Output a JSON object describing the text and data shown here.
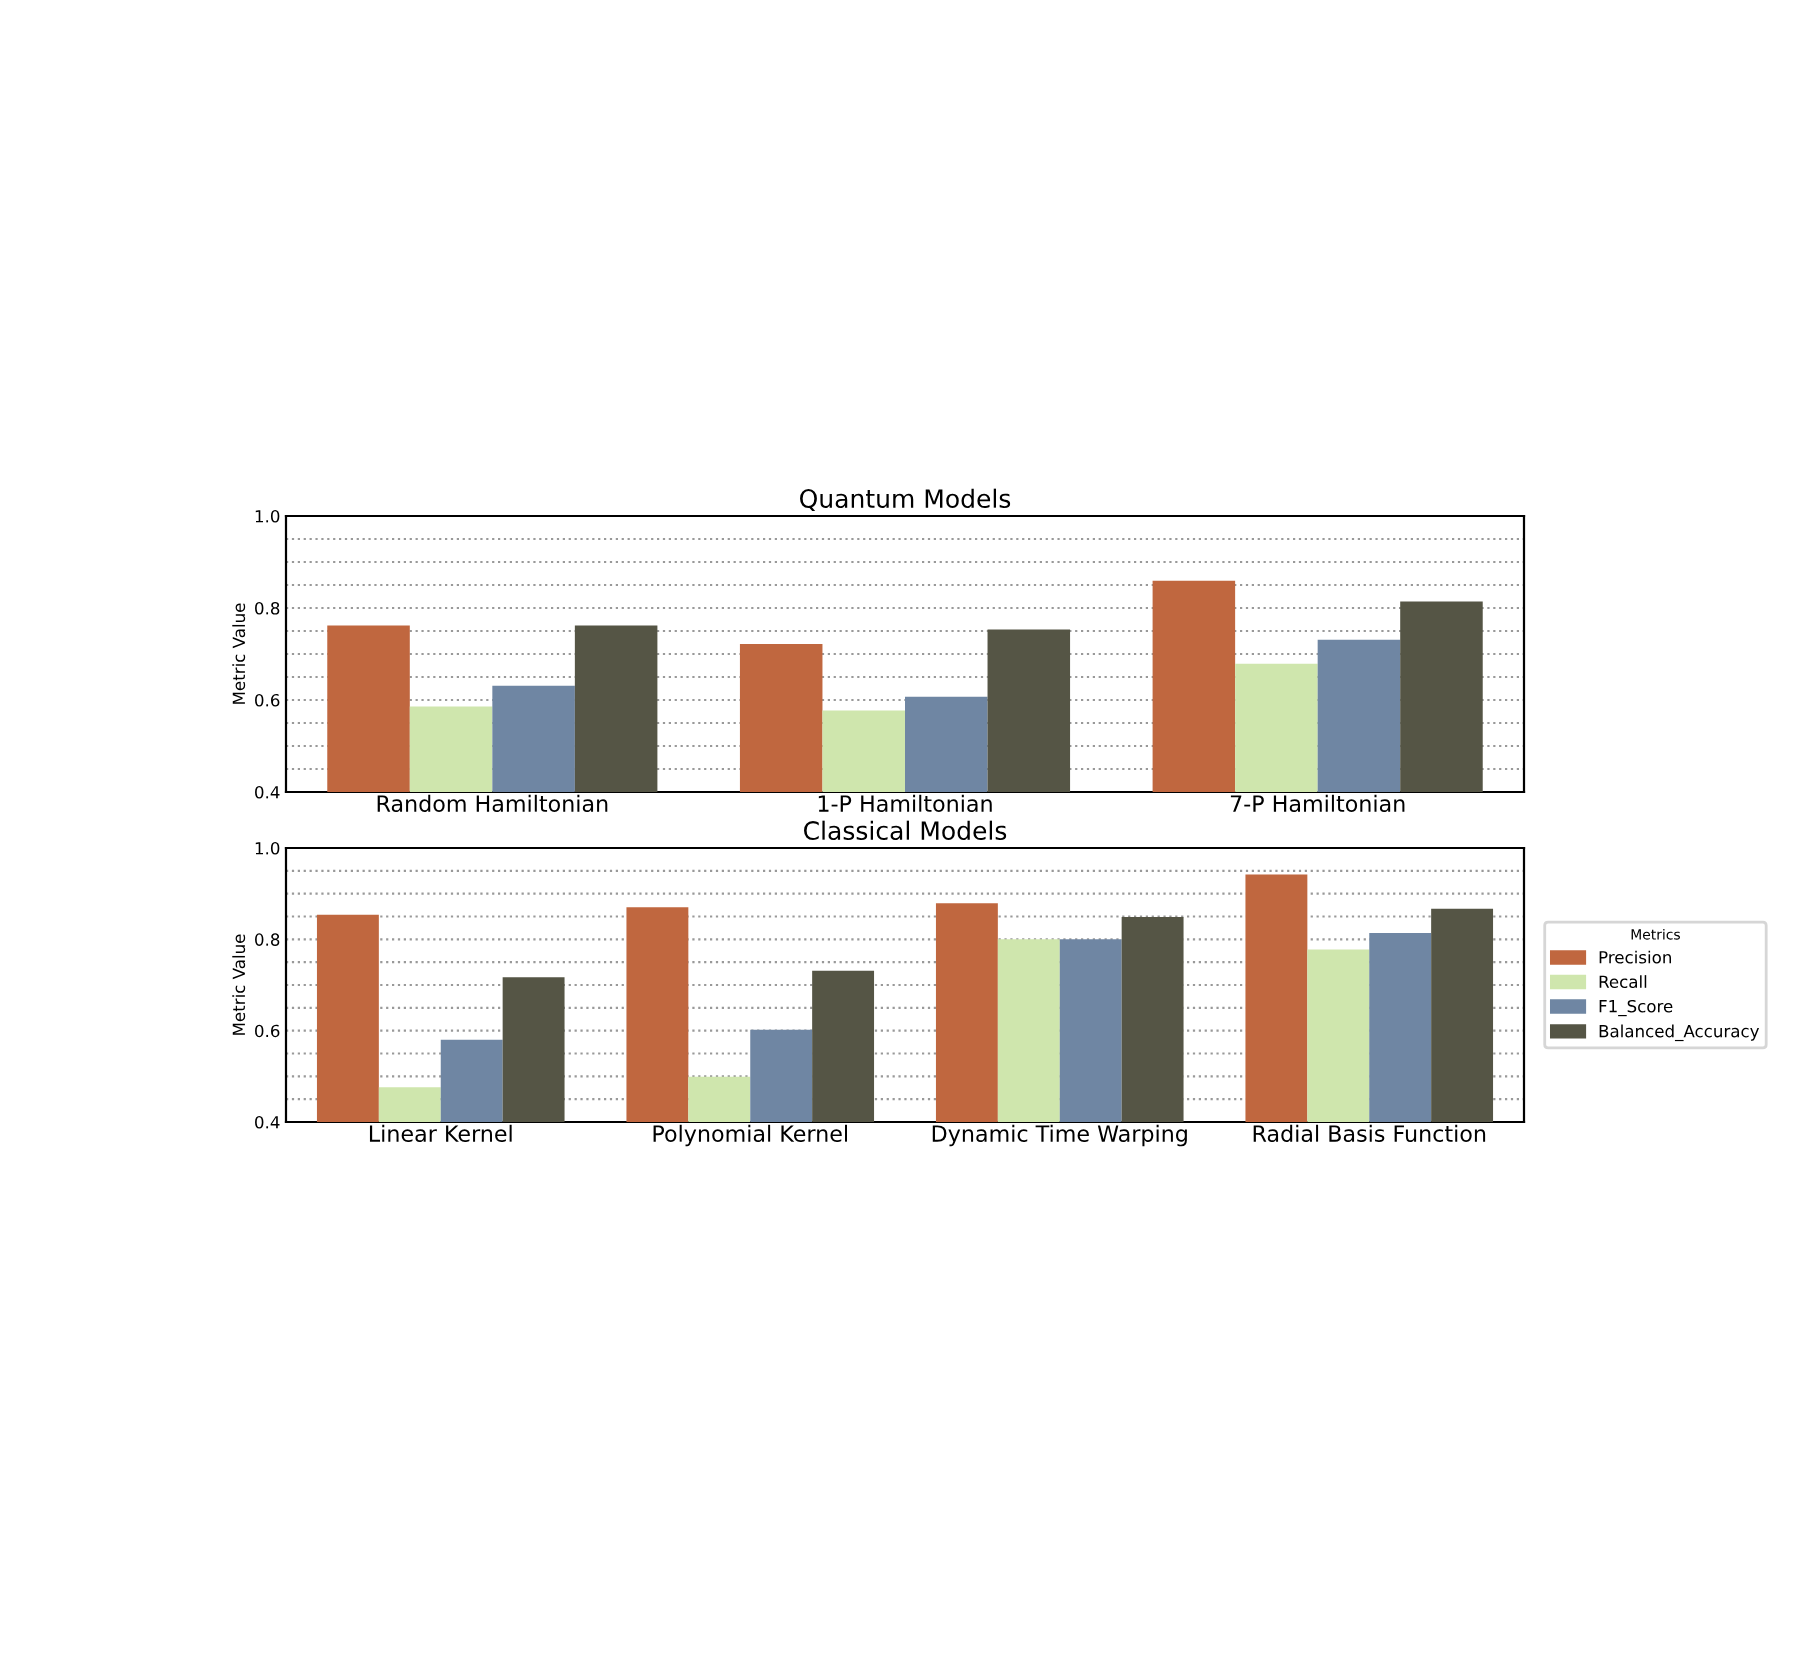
{
  "chart_data": [
    {
      "type": "bar",
      "title": "Quantum Models",
      "ylabel": "Metric Value",
      "categories": [
        "Random Hamiltonian",
        "1-P Hamiltonian",
        "7-P Hamiltonian"
      ],
      "series": [
        {
          "color": "#c0673f",
          "values": [
            0.762,
            0.722,
            0.859
          ]
        },
        {
          "color": "#cfe6ad",
          "values": [
            0.586,
            0.577,
            0.679
          ]
        },
        {
          "color": "#6f86a3",
          "values": [
            0.631,
            0.607,
            0.731
          ]
        },
        {
          "color": "#555545",
          "values": [
            0.762,
            0.753,
            0.814
          ]
        }
      ],
      "ylim": [
        0.4,
        1.0
      ],
      "yticks": [
        0.4,
        {
          "value": 0.45,
          "label": null
        },
        {
          "value": 0.5,
          "label": null
        },
        {
          "value": 0.55,
          "label": null
        },
        0.6,
        {
          "value": 0.65,
          "label": null
        },
        {
          "value": 0.7,
          "label": null
        },
        {
          "value": 0.75,
          "label": null
        },
        0.8,
        {
          "value": 0.85,
          "label": null
        },
        {
          "value": 0.9,
          "label": null
        },
        {
          "value": 0.95,
          "label": null
        },
        {
          "value": 1.0,
          "label": "1.0"
        }
      ],
      "grid": "y",
      "legend": false
    },
    {
      "type": "bar",
      "title": "Classical Models",
      "ylabel": "Metric Value",
      "legend_title": "Metrics",
      "categories": [
        "Linear Kernel",
        "Polynomial Kernel",
        "Dynamic Time Warping",
        "Radial Basis Function"
      ],
      "series": [
        {
          "name": "Precision",
          "color": "#c0673f",
          "values": [
            0.854,
            0.87,
            0.879,
            0.942
          ]
        },
        {
          "name": "Recall",
          "color": "#cfe6ad",
          "values": [
            0.476,
            0.499,
            0.8,
            0.778
          ]
        },
        {
          "name": "F1_Score",
          "color": "#6f86a3",
          "values": [
            0.58,
            0.602,
            0.8,
            0.814
          ]
        },
        {
          "name": "Balanced_Accuracy",
          "color": "#555545",
          "values": [
            0.717,
            0.731,
            0.849,
            0.867
          ]
        }
      ],
      "ylim": [
        0.4,
        1.0
      ],
      "yticks": [
        0.4,
        {
          "value": 0.45,
          "label": null
        },
        {
          "value": 0.5,
          "label": null
        },
        {
          "value": 0.55,
          "label": null
        },
        0.6,
        {
          "value": 0.65,
          "label": null
        },
        {
          "value": 0.7,
          "label": null
        },
        {
          "value": 0.75,
          "label": null
        },
        0.8,
        {
          "value": 0.85,
          "label": null
        },
        {
          "value": 0.9,
          "label": null
        },
        {
          "value": 0.95,
          "label": null
        },
        {
          "value": 1.0,
          "label": "1.0"
        }
      ],
      "grid": "y",
      "legend": "right"
    }
  ]
}
